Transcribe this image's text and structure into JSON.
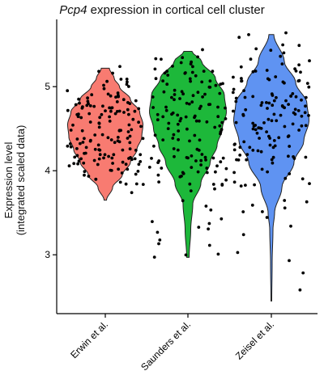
{
  "title": {
    "gene": "Pcp4",
    "rest": " expression in cortical cell cluster"
  },
  "ylabel": {
    "line1": "Expression level",
    "line2": "(integrated scaled data)"
  },
  "chart_data": {
    "type": "violin",
    "categories": [
      "Erwin et al.",
      "Saunders et al.",
      "Zeisel et al."
    ],
    "colors": [
      "#f87b71",
      "#1db83a",
      "#5f93f2"
    ],
    "ylim": [
      2.3,
      5.8
    ],
    "yticks": [
      3,
      4,
      5
    ],
    "yticklabels": [
      "3",
      "4",
      "5"
    ],
    "grid": false,
    "series": [
      {
        "min": 3.65,
        "max": 5.22,
        "profile": [
          [
            3.65,
            0.03
          ],
          [
            3.8,
            0.18
          ],
          [
            3.95,
            0.42
          ],
          [
            4.1,
            0.62
          ],
          [
            4.25,
            0.78
          ],
          [
            4.4,
            0.9
          ],
          [
            4.55,
            0.93
          ],
          [
            4.7,
            0.85
          ],
          [
            4.85,
            0.62
          ],
          [
            5.0,
            0.35
          ],
          [
            5.1,
            0.22
          ],
          [
            5.22,
            0.1
          ]
        ]
      },
      {
        "min": 2.97,
        "max": 5.42,
        "profile": [
          [
            2.97,
            0.03
          ],
          [
            3.3,
            0.07
          ],
          [
            3.6,
            0.12
          ],
          [
            3.85,
            0.32
          ],
          [
            4.1,
            0.55
          ],
          [
            4.3,
            0.72
          ],
          [
            4.5,
            0.85
          ],
          [
            4.7,
            0.95
          ],
          [
            4.9,
            0.9
          ],
          [
            5.1,
            0.68
          ],
          [
            5.3,
            0.34
          ],
          [
            5.42,
            0.1
          ]
        ]
      },
      {
        "min": 2.45,
        "max": 5.62,
        "profile": [
          [
            2.45,
            0.01
          ],
          [
            2.9,
            0.02
          ],
          [
            3.3,
            0.04
          ],
          [
            3.5,
            0.08
          ],
          [
            3.8,
            0.26
          ],
          [
            4.1,
            0.56
          ],
          [
            4.35,
            0.8
          ],
          [
            4.6,
            0.93
          ],
          [
            4.8,
            0.88
          ],
          [
            5.05,
            0.6
          ],
          [
            5.3,
            0.32
          ],
          [
            5.62,
            0.06
          ]
        ]
      }
    ]
  }
}
